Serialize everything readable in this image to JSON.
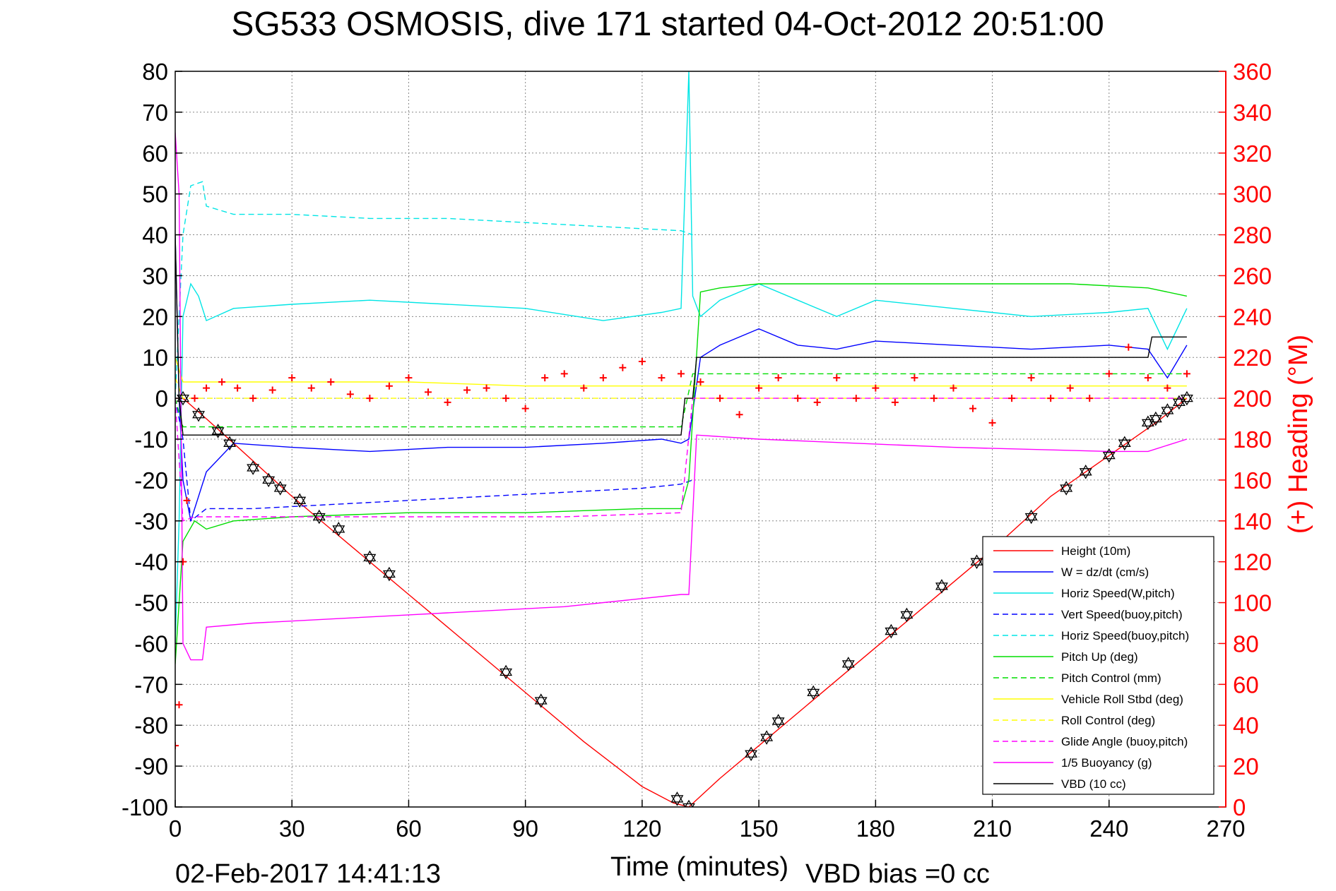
{
  "chart_data": {
    "type": "line",
    "title": "SG533 OSMOSIS, dive 171 started 04-Oct-2012 20:51:00",
    "xlabel": "Time (minutes)",
    "ylabel_right": "(+) Heading (°M)",
    "timestamp": "02-Feb-2017 14:41:13",
    "note": "VBD bias =0 cc",
    "xlim": [
      0,
      270
    ],
    "ylim": [
      -100,
      80
    ],
    "ylim_right": [
      0,
      360
    ],
    "x_ticks": [
      "0",
      "30",
      "60",
      "90",
      "120",
      "150",
      "180",
      "210",
      "240",
      "270"
    ],
    "y_ticks": [
      "80",
      "70",
      "60",
      "50",
      "40",
      "30",
      "20",
      "10",
      "0",
      "-10",
      "-20",
      "-30",
      "-40",
      "-50",
      "-60",
      "-70",
      "-80",
      "-90",
      "-100"
    ],
    "y_right_ticks": [
      "360",
      "340",
      "320",
      "300",
      "280",
      "260",
      "240",
      "220",
      "200",
      "180",
      "160",
      "140",
      "120",
      "100",
      "80",
      "60",
      "40",
      "20",
      "0"
    ],
    "grid": true,
    "legend_position": "bottom-right",
    "series": [
      {
        "name": "Height (10m)",
        "color": "#ff0000",
        "style": "solid",
        "x": [
          0,
          2,
          8,
          15,
          30,
          40,
          50,
          60,
          75,
          90,
          105,
          120,
          128,
          132,
          140,
          150,
          165,
          180,
          195,
          210,
          225,
          240,
          252,
          260
        ],
        "y": [
          0,
          0,
          -5,
          -11,
          -24,
          -32,
          -40,
          -48,
          -60,
          -72,
          -84,
          -95,
          -99,
          -100,
          -93,
          -85,
          -73,
          -61,
          -49,
          -37,
          -24,
          -14,
          -6,
          0
        ]
      },
      {
        "name": "W = dz/dt (cm/s)",
        "color": "#0000ff",
        "style": "solid",
        "x": [
          0,
          1,
          2,
          4,
          8,
          15,
          30,
          50,
          70,
          90,
          110,
          125,
          130,
          132,
          135,
          140,
          150,
          160,
          170,
          180,
          200,
          220,
          240,
          250,
          255,
          260
        ],
        "y": [
          40,
          0,
          -20,
          -30,
          -18,
          -11,
          -12,
          -13,
          -12,
          -12,
          -11,
          -10,
          -11,
          -10,
          10,
          13,
          17,
          13,
          12,
          14,
          13,
          12,
          13,
          12,
          5,
          13
        ]
      },
      {
        "name": "Horiz Speed(W,pitch)",
        "color": "#00e5e5",
        "style": "solid",
        "x": [
          0,
          1,
          2,
          4,
          6,
          8,
          15,
          30,
          50,
          70,
          90,
          110,
          125,
          130,
          132,
          133,
          135,
          140,
          150,
          160,
          170,
          180,
          200,
          220,
          240,
          250,
          255,
          260
        ],
        "y": [
          -60,
          -30,
          20,
          28,
          25,
          19,
          22,
          23,
          24,
          23,
          22,
          19,
          21,
          22,
          80,
          25,
          20,
          24,
          28,
          24,
          20,
          24,
          22,
          20,
          21,
          22,
          12,
          22
        ]
      },
      {
        "name": "Vert Speed(buoy,pitch)",
        "color": "#0000ff",
        "style": "dashed",
        "x": [
          0,
          2,
          4,
          8,
          20,
          40,
          60,
          80,
          100,
          120,
          130,
          133
        ],
        "y": [
          0,
          -10,
          -30,
          -27,
          -27,
          -26,
          -25,
          -24,
          -23,
          -22,
          -21,
          -20
        ]
      },
      {
        "name": "Horiz Speed(buoy,pitch)",
        "color": "#00e5e5",
        "style": "dashed",
        "x": [
          0,
          2,
          4,
          7,
          8,
          15,
          30,
          50,
          70,
          90,
          110,
          130,
          133
        ],
        "y": [
          0,
          40,
          52,
          53,
          47,
          45,
          45,
          44,
          44,
          43,
          42,
          41,
          40
        ]
      },
      {
        "name": "Pitch Up (deg)",
        "color": "#00dd00",
        "style": "solid",
        "x": [
          0,
          2,
          5,
          8,
          15,
          30,
          60,
          90,
          120,
          130,
          132,
          135,
          140,
          150,
          170,
          200,
          230,
          250,
          260
        ],
        "y": [
          -65,
          -35,
          -30,
          -32,
          -30,
          -29,
          -28,
          -28,
          -27,
          -27,
          -20,
          26,
          27,
          28,
          28,
          28,
          28,
          27,
          25
        ]
      },
      {
        "name": "Pitch Control (mm)",
        "color": "#00dd00",
        "style": "dashed",
        "x": [
          0,
          2,
          130,
          133,
          260
        ],
        "y": [
          0,
          -7,
          -7,
          6,
          6
        ]
      },
      {
        "name": "Vehicle Roll Stbd (deg)",
        "color": "#ffff00",
        "style": "solid",
        "x": [
          0,
          2,
          30,
          60,
          90,
          120,
          130,
          133,
          160,
          200,
          240,
          260
        ],
        "y": [
          10,
          4,
          4,
          4,
          3,
          3,
          3,
          3,
          3,
          3,
          3,
          3
        ]
      },
      {
        "name": "Roll Control (deg)",
        "color": "#ffff00",
        "style": "dashed",
        "x": [
          0,
          2,
          260
        ],
        "y": [
          5,
          0,
          0
        ]
      },
      {
        "name": "Glide Angle (buoy,pitch)",
        "color": "#ff00ff",
        "style": "dashed",
        "x": [
          0,
          2,
          5,
          20,
          60,
          100,
          130,
          133,
          260
        ],
        "y": [
          0,
          -30,
          -29,
          -29,
          -29,
          -29,
          -28,
          0,
          0
        ]
      },
      {
        "name": "1/5 Buoyancy (g)",
        "color": "#ff00ff",
        "style": "solid",
        "x": [
          0,
          1,
          2,
          4,
          7,
          8,
          20,
          60,
          100,
          130,
          132,
          134,
          150,
          200,
          240,
          250,
          260
        ],
        "y": [
          65,
          50,
          -60,
          -64,
          -64,
          -56,
          -55,
          -53,
          -51,
          -48,
          -48,
          -9,
          -10,
          -12,
          -13,
          -13,
          -10
        ]
      },
      {
        "name": "VBD (10 cc)",
        "color": "#000000",
        "style": "solid",
        "x": [
          0,
          1,
          2,
          3,
          130,
          131,
          133,
          134,
          250,
          251,
          260
        ],
        "y": [
          40,
          0,
          -9,
          -9,
          -9,
          0,
          0,
          10,
          10,
          15,
          15
        ]
      }
    ],
    "heading_series": {
      "name": "(+) Heading",
      "color": "#ff0000",
      "marker": "+",
      "x": [
        0,
        1,
        2,
        3,
        5,
        8,
        12,
        16,
        20,
        25,
        30,
        35,
        40,
        45,
        50,
        55,
        60,
        65,
        70,
        75,
        80,
        85,
        90,
        95,
        100,
        105,
        110,
        115,
        120,
        125,
        130,
        135,
        140,
        145,
        150,
        155,
        160,
        165,
        170,
        175,
        180,
        185,
        190,
        195,
        200,
        205,
        210,
        215,
        220,
        225,
        230,
        235,
        240,
        245,
        250,
        255,
        260
      ],
      "y": [
        30,
        50,
        120,
        150,
        200,
        205,
        208,
        205,
        200,
        204,
        210,
        205,
        208,
        202,
        200,
        206,
        210,
        203,
        198,
        204,
        205,
        200,
        195,
        210,
        212,
        205,
        210,
        215,
        218,
        210,
        212,
        208,
        200,
        192,
        205,
        210,
        200,
        198,
        210,
        200,
        205,
        198,
        210,
        200,
        205,
        195,
        188,
        200,
        210,
        200,
        205,
        200,
        212,
        225,
        210,
        205,
        212
      ]
    },
    "height_markers": {
      "marker": "hexagram",
      "color": "#000000",
      "x": [
        2,
        6,
        11,
        14,
        20,
        24,
        27,
        32,
        37,
        42,
        50,
        55,
        85,
        94,
        129,
        132,
        148,
        152,
        155,
        164,
        173,
        184,
        188,
        197,
        206,
        220,
        229,
        234,
        240,
        244,
        250,
        252,
        255,
        258,
        260
      ],
      "y": [
        0,
        -4,
        -8,
        -11,
        -17,
        -20,
        -22,
        -25,
        -29,
        -32,
        -39,
        -43,
        -67,
        -74,
        -98,
        -100,
        -87,
        -83,
        -79,
        -72,
        -65,
        -57,
        -53,
        -46,
        -40,
        -29,
        -22,
        -18,
        -14,
        -11,
        -6,
        -5,
        -3,
        -1,
        0
      ]
    }
  }
}
